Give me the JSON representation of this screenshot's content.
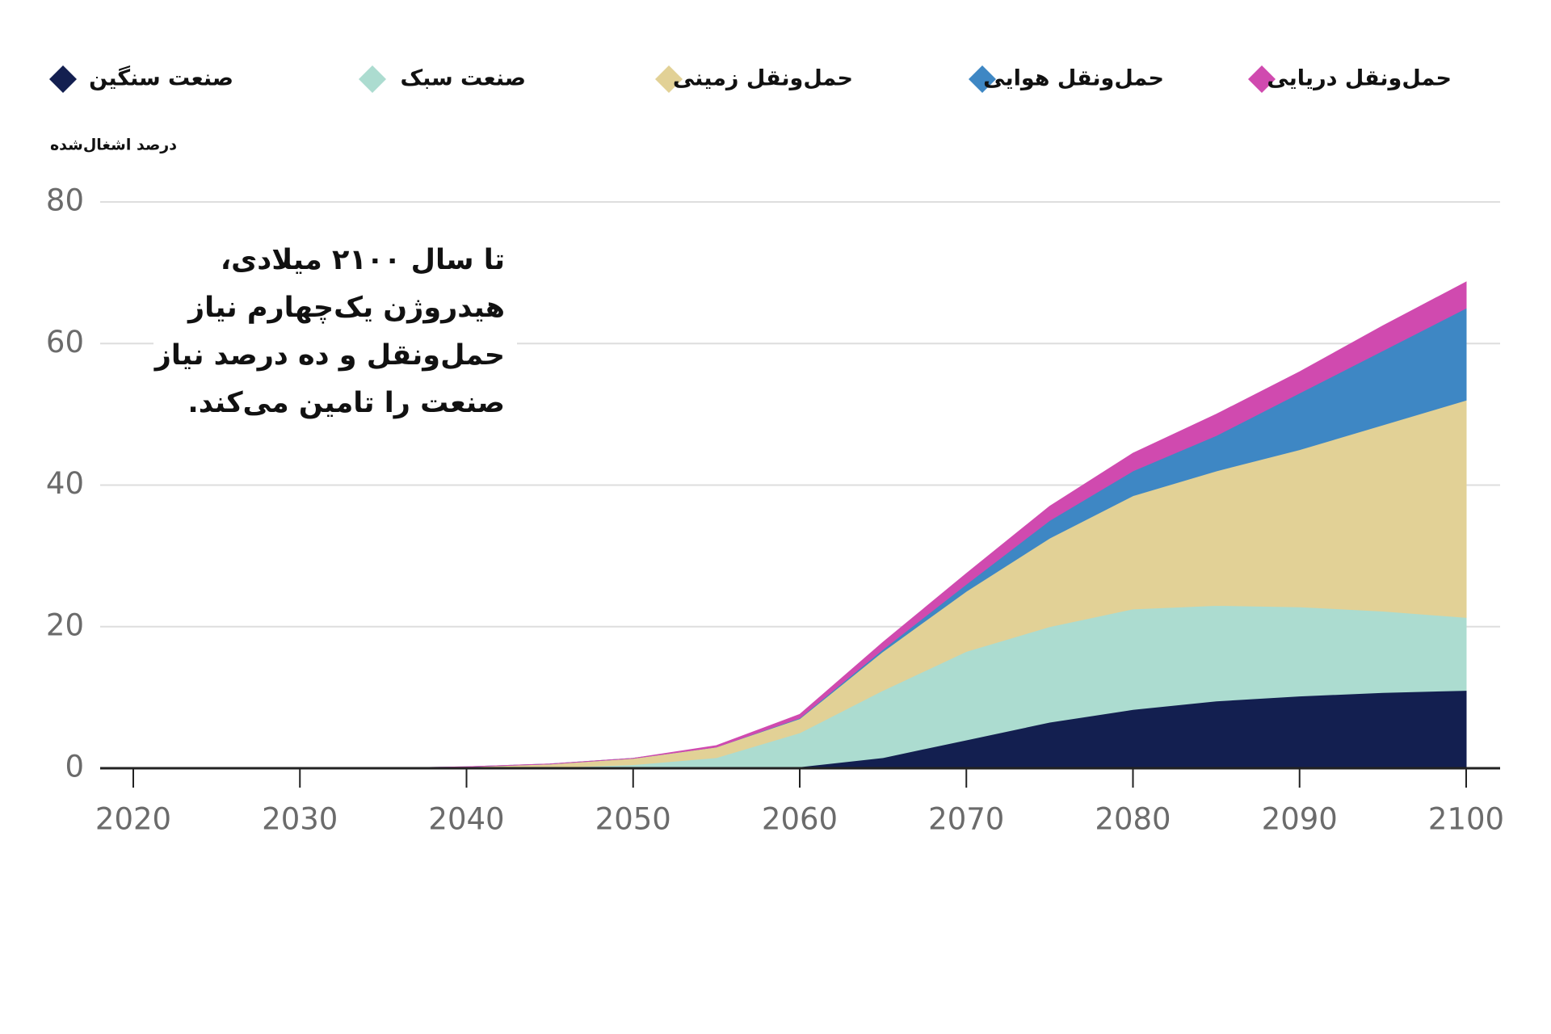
{
  "chart_data": {
    "type": "stacked-area",
    "y_label": "درصد اشغال‌شده",
    "annotation": [
      "تا سال ۲۱۰۰ میلادی،",
      "هیدروژن یک‌چهارم نیاز",
      "حمل‌ونقل و ده درصد نیاز",
      "صنعت را تامین می‌کند."
    ],
    "x": [
      2020,
      2025,
      2030,
      2035,
      2040,
      2045,
      2050,
      2055,
      2060,
      2065,
      2070,
      2075,
      2080,
      2085,
      2090,
      2095,
      2100
    ],
    "xlim": [
      2020,
      2100
    ],
    "xticks": [
      2020,
      2030,
      2040,
      2050,
      2060,
      2070,
      2080,
      2090,
      2100
    ],
    "ylim": [
      0,
      80
    ],
    "yticks": [
      0,
      20,
      40,
      60,
      80
    ],
    "grid": true,
    "series": [
      {
        "name": "صنعت سنگین",
        "color": "#131f50",
        "values": [
          0,
          0,
          0,
          0,
          0,
          0,
          0,
          0,
          0.2,
          1.5,
          4,
          6.5,
          8.3,
          9.5,
          10.2,
          10.7,
          11
        ]
      },
      {
        "name": "صنعت سبک",
        "color": "#acdcd0",
        "values": [
          0,
          0,
          0,
          0,
          0,
          0.1,
          0.5,
          1.5,
          4.8,
          9.5,
          12.5,
          13.5,
          14.2,
          13.5,
          12.6,
          11.5,
          10.3
        ]
      },
      {
        "name": "حمل‌ونقل زمینی",
        "color": "#e2d196",
        "values": [
          0,
          0,
          0,
          0,
          0.2,
          0.5,
          0.9,
          1.5,
          2,
          5.5,
          8.5,
          12.5,
          16,
          19,
          22.2,
          26.3,
          30.7
        ]
      },
      {
        "name": "حمل‌ونقل هوایی",
        "color": "#3e87c4",
        "values": [
          0,
          0,
          0,
          0,
          0,
          0,
          0,
          0,
          0.1,
          0.3,
          1,
          2.5,
          3.5,
          5,
          8,
          10.5,
          13
        ]
      },
      {
        "name": "حمل‌ونقل دریایی",
        "color": "#d04aaf",
        "values": [
          0,
          0,
          0,
          0,
          0,
          0,
          0,
          0.2,
          0.5,
          1,
          1.5,
          2,
          2.5,
          3,
          3,
          3.5,
          3.7
        ]
      }
    ]
  }
}
